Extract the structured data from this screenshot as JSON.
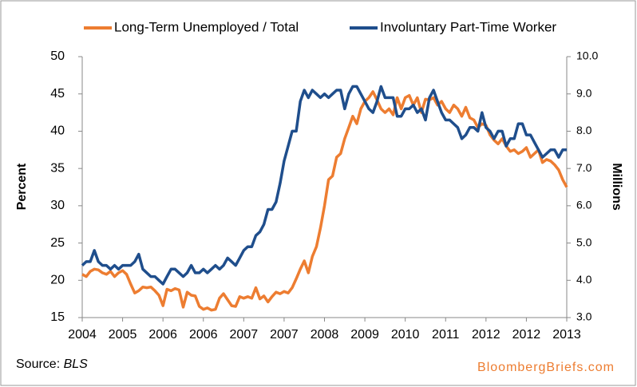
{
  "chart_data": {
    "type": "line",
    "categories": [
      "2004",
      null,
      null,
      null,
      null,
      null,
      null,
      null,
      null,
      null,
      "2005",
      null,
      null,
      null,
      null,
      null,
      null,
      null,
      null,
      null,
      "2006",
      null,
      null,
      null,
      null,
      null,
      null,
      null,
      null,
      null,
      "2006",
      null,
      null,
      null,
      null,
      null,
      null,
      null,
      null,
      null,
      "2007",
      null,
      null,
      null,
      null,
      null,
      null,
      null,
      null,
      null,
      "2007",
      null,
      null,
      null,
      null,
      null,
      null,
      null,
      null,
      null,
      "2008",
      null,
      null,
      null,
      null,
      null,
      null,
      null,
      null,
      null,
      "2009",
      null,
      null,
      null,
      null,
      null,
      null,
      null,
      null,
      null,
      "2010",
      null,
      null,
      null,
      null,
      null,
      null,
      null,
      null,
      null,
      "2011",
      null,
      null,
      null,
      null,
      null,
      null,
      null,
      null,
      null,
      "2012",
      null,
      null,
      null,
      null,
      null,
      null,
      null,
      null,
      null,
      "2012",
      null,
      null,
      null,
      null,
      null,
      null,
      null,
      null,
      null,
      "2013"
    ],
    "series": [
      {
        "name": "Long-Term Unemployed / Total",
        "color": "#ed7d31",
        "axis": "y",
        "values": [
          20.8,
          20.5,
          21.2,
          21.5,
          21.4,
          21.0,
          20.8,
          21.2,
          20.5,
          21.0,
          21.3,
          20.8,
          19.5,
          18.3,
          18.6,
          19.1,
          19.0,
          19.1,
          18.6,
          18.0,
          16.6,
          18.8,
          18.6,
          18.9,
          18.7,
          16.4,
          18.4,
          18.0,
          17.9,
          16.5,
          16.1,
          16.3,
          16.0,
          16.1,
          17.6,
          18.2,
          17.4,
          16.6,
          16.5,
          17.8,
          17.6,
          17.8,
          17.6,
          19.0,
          17.5,
          17.9,
          17.1,
          17.8,
          18.4,
          18.2,
          18.5,
          18.3,
          19.0,
          20.2,
          21.5,
          22.6,
          21.0,
          23.2,
          24.5,
          27.0,
          30.0,
          33.5,
          34.0,
          36.5,
          37.0,
          39.0,
          40.5,
          42.0,
          41.0,
          43.0,
          44.0,
          44.5,
          45.3,
          44.2,
          43.0,
          42.5,
          43.0,
          42.2,
          44.5,
          43.0,
          44.5,
          44.8,
          43.5,
          44.5,
          42.5,
          44.3,
          44.2,
          44.5,
          43.5,
          44.0,
          43.0,
          42.5,
          43.5,
          43.0,
          42.0,
          43.2,
          41.8,
          41.5,
          40.5,
          41.0,
          40.8,
          39.5,
          38.8,
          38.3,
          39.0,
          38.0,
          37.3,
          37.5,
          37.0,
          37.3,
          37.8,
          36.5,
          37.0,
          37.5,
          35.8,
          36.2,
          36.0,
          35.5,
          34.8,
          33.5,
          32.5
        ]
      },
      {
        "name": "Involuntary Part-Time Worker",
        "color": "#1f4e8c",
        "axis": "y2",
        "values": [
          4.4,
          4.5,
          4.5,
          4.8,
          4.5,
          4.4,
          4.4,
          4.3,
          4.4,
          4.3,
          4.4,
          4.4,
          4.4,
          4.5,
          4.7,
          4.3,
          4.2,
          4.1,
          4.1,
          4.0,
          3.9,
          4.1,
          4.3,
          4.3,
          4.2,
          4.1,
          4.2,
          4.4,
          4.2,
          4.2,
          4.3,
          4.2,
          4.3,
          4.4,
          4.3,
          4.4,
          4.6,
          4.5,
          4.4,
          4.6,
          4.8,
          4.9,
          4.9,
          5.2,
          5.3,
          5.5,
          5.9,
          5.9,
          6.1,
          6.6,
          7.2,
          7.6,
          8.0,
          8.0,
          8.8,
          9.1,
          8.9,
          9.1,
          9.0,
          8.9,
          9.0,
          8.9,
          9.0,
          9.1,
          9.1,
          8.6,
          9.0,
          9.2,
          9.2,
          9.0,
          8.8,
          8.6,
          8.5,
          8.8,
          9.2,
          8.9,
          8.9,
          8.9,
          8.4,
          8.4,
          8.6,
          8.6,
          8.7,
          8.5,
          8.6,
          8.3,
          8.9,
          9.1,
          8.8,
          8.5,
          8.3,
          8.3,
          8.2,
          8.1,
          7.8,
          7.9,
          8.1,
          8.1,
          8.0,
          8.5,
          8.1,
          8.0,
          7.8,
          8.0,
          8.0,
          7.6,
          7.8,
          7.8,
          8.2,
          8.2,
          7.9,
          7.9,
          7.7,
          7.5,
          7.3,
          7.4,
          7.5,
          7.5,
          7.3,
          7.5,
          7.5
        ]
      }
    ],
    "ylabel": "Percent",
    "y2label": "Millions",
    "ylim": [
      15,
      50
    ],
    "yticks": [
      15,
      20,
      25,
      30,
      35,
      40,
      45,
      50
    ],
    "y2lim": [
      3,
      10
    ],
    "y2ticks": [
      {
        "value": 3,
        "label": "3.0"
      },
      {
        "value": 4,
        "label": "4.0"
      },
      {
        "value": 5,
        "label": "5.0"
      },
      {
        "value": 6,
        "label": "6.0"
      },
      {
        "value": 7,
        "label": "7.0"
      },
      {
        "value": 8,
        "label": "8.0"
      },
      {
        "value": 9,
        "label": "9.0"
      },
      {
        "value": 10,
        "label": "10.0"
      }
    ],
    "grid": false,
    "legend": "top",
    "source_prefix": "Source:",
    "source_name": "BLS",
    "credit": "BloombergBriefs.com"
  }
}
